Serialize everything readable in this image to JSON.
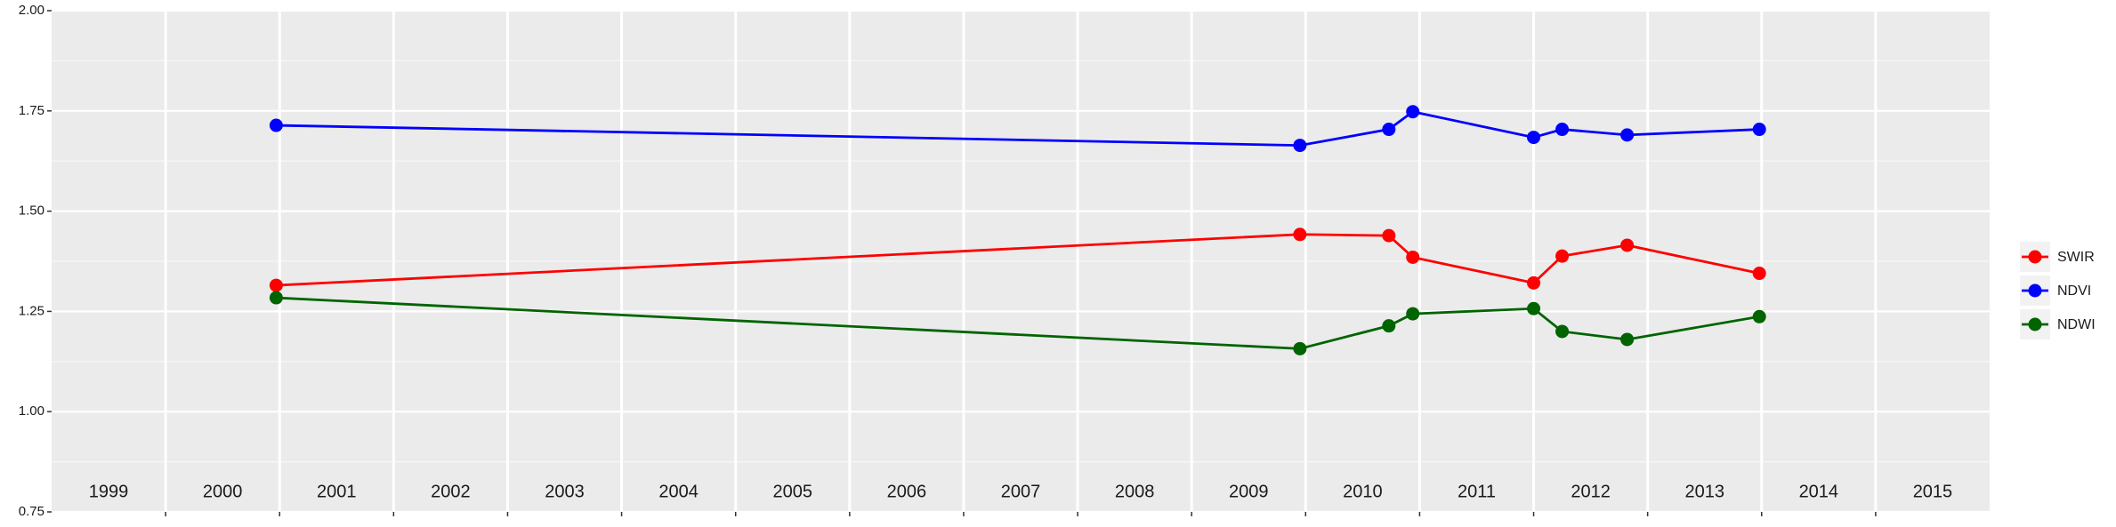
{
  "chart_data": {
    "type": "line",
    "x": [
      2000.97,
      2009.95,
      2010.73,
      2010.94,
      2012.0,
      2012.25,
      2012.82,
      2013.98
    ],
    "series": [
      {
        "name": "SWIR",
        "color": "#ff0000",
        "values": [
          1.315,
          1.442,
          1.439,
          1.385,
          1.321,
          1.388,
          1.415,
          1.345
        ]
      },
      {
        "name": "NDVI",
        "color": "#0000ff",
        "values": [
          1.714,
          1.664,
          1.704,
          1.748,
          1.684,
          1.704,
          1.69,
          1.704
        ]
      },
      {
        "name": "NDWI",
        "color": "#006400",
        "values": [
          1.284,
          1.157,
          1.214,
          1.244,
          1.257,
          1.2,
          1.18,
          1.237
        ]
      }
    ],
    "xlim": [
      1999,
      2016
    ],
    "x_grid": [
      2000,
      2001,
      2002,
      2003,
      2004,
      2005,
      2006,
      2007,
      2008,
      2009,
      2010,
      2011,
      2012,
      2013,
      2014,
      2015
    ],
    "xticks": [
      {
        "value": 1999.5,
        "label": "1999"
      },
      {
        "value": 2000.5,
        "label": "2000"
      },
      {
        "value": 2001.5,
        "label": "2001"
      },
      {
        "value": 2002.5,
        "label": "2002"
      },
      {
        "value": 2003.5,
        "label": "2003"
      },
      {
        "value": 2004.5,
        "label": "2004"
      },
      {
        "value": 2005.5,
        "label": "2005"
      },
      {
        "value": 2006.5,
        "label": "2006"
      },
      {
        "value": 2007.5,
        "label": "2007"
      },
      {
        "value": 2008.5,
        "label": "2008"
      },
      {
        "value": 2009.5,
        "label": "2009"
      },
      {
        "value": 2010.5,
        "label": "2010"
      },
      {
        "value": 2011.5,
        "label": "2011"
      },
      {
        "value": 2012.5,
        "label": "2012"
      },
      {
        "value": 2013.5,
        "label": "2013"
      },
      {
        "value": 2014.5,
        "label": "2014"
      },
      {
        "value": 2015.5,
        "label": "2015"
      }
    ],
    "ylim": [
      0.75,
      2.0
    ],
    "yticks": [
      {
        "value": 0.75,
        "label": "0.75"
      },
      {
        "value": 1.0,
        "label": "1.00"
      },
      {
        "value": 1.25,
        "label": "1.25"
      },
      {
        "value": 1.5,
        "label": "1.50"
      },
      {
        "value": 1.75,
        "label": "1.75"
      },
      {
        "value": 2.0,
        "label": "2.00"
      }
    ],
    "grid": true,
    "legend": "right"
  }
}
